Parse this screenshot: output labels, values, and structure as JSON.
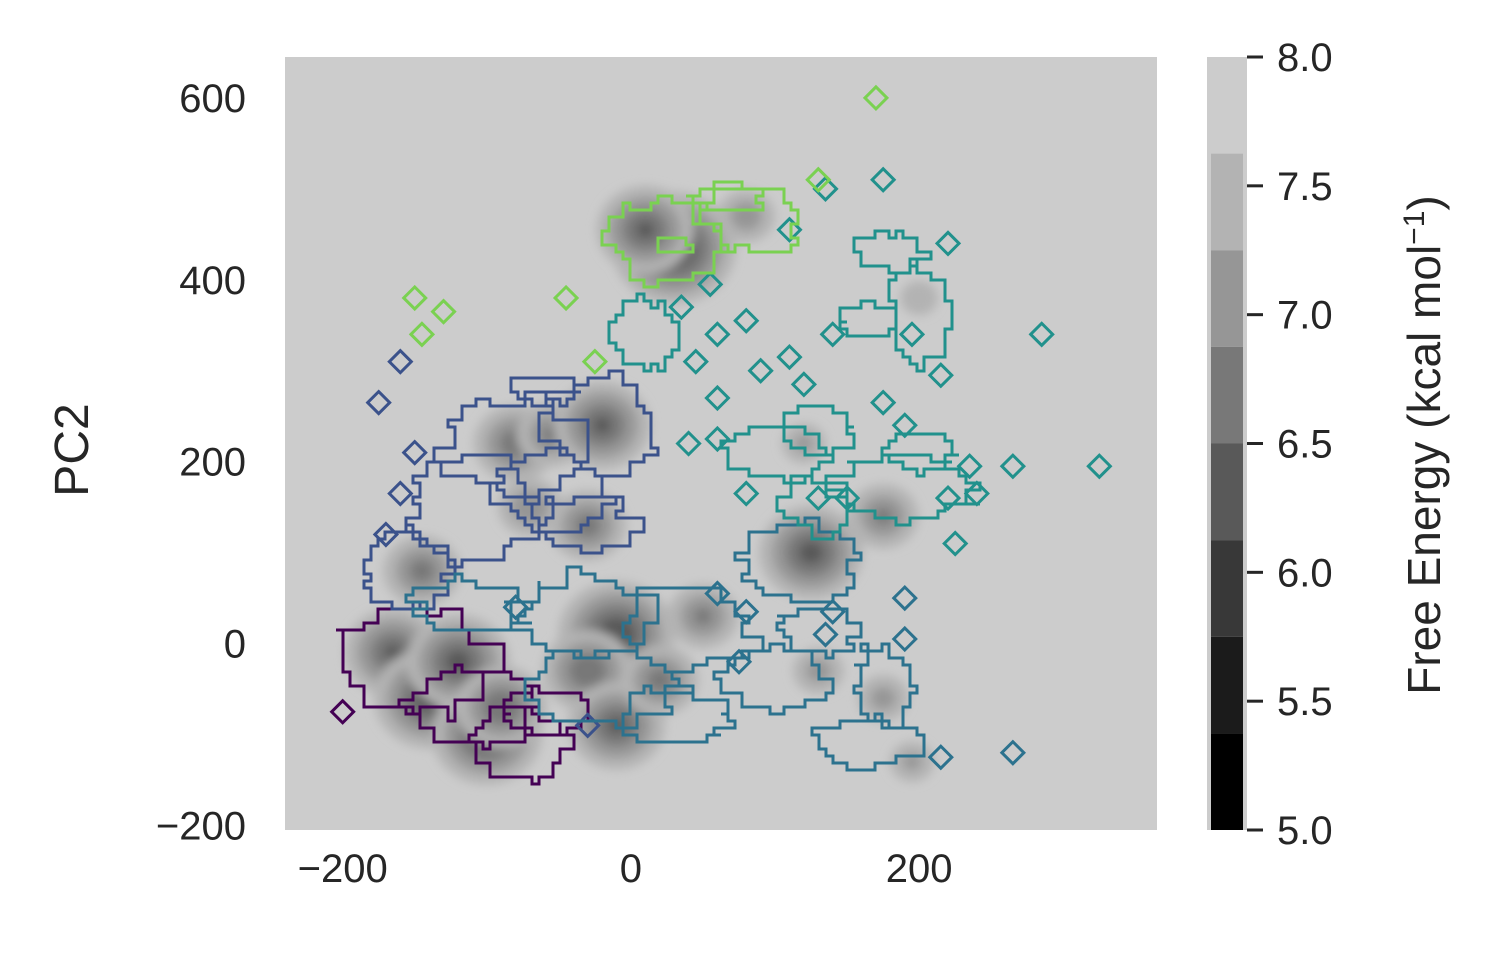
{
  "chart_data": {
    "type": "heatmap",
    "subtype": "free-energy contour map with cluster outlines",
    "title": "",
    "xlabel": "",
    "ylabel": "PC2",
    "xlim": [
      -240,
      365
    ],
    "ylim": [
      -205,
      645
    ],
    "x_ticks": [
      -200,
      0,
      200
    ],
    "x_tick_labels": [
      "−200",
      "0",
      "200"
    ],
    "y_ticks": [
      -200,
      0,
      200,
      400,
      600
    ],
    "y_tick_labels": [
      "−200",
      "0",
      "200",
      "400",
      "600"
    ],
    "grid": false,
    "background_color": "#cccccc",
    "colorbar": {
      "label": "Free Energy (kcal mol⁻¹)",
      "label_main": "Free Energy (kcal mol",
      "label_sup": "−1",
      "label_close": ")",
      "range": [
        5.0,
        8.0
      ],
      "ticks": [
        5.0,
        5.5,
        6.0,
        6.5,
        7.0,
        7.5,
        8.0
      ],
      "tick_labels": [
        "5.0",
        "5.5",
        "6.0",
        "6.5",
        "7.0",
        "7.5",
        "8.0"
      ],
      "levels": [
        5.0,
        5.375,
        5.75,
        6.125,
        6.5,
        6.875,
        7.25,
        7.625,
        8.0
      ],
      "level_colors": [
        "#000000",
        "#1b1b1b",
        "#383838",
        "#595959",
        "#787878",
        "#969696",
        "#b3b3b3",
        "#cccccc"
      ]
    },
    "free_energy_wells": [
      {
        "x": -165,
        "y": -10,
        "depth": 6.2
      },
      {
        "x": -140,
        "y": -60,
        "depth": 6.0
      },
      {
        "x": -120,
        "y": -20,
        "depth": 6.1
      },
      {
        "x": -100,
        "y": -100,
        "depth": 6.0
      },
      {
        "x": -90,
        "y": -70,
        "depth": 6.3
      },
      {
        "x": -145,
        "y": 80,
        "depth": 6.5
      },
      {
        "x": -80,
        "y": 220,
        "depth": 6.4
      },
      {
        "x": -55,
        "y": 230,
        "depth": 6.6
      },
      {
        "x": -20,
        "y": 240,
        "depth": 6.2
      },
      {
        "x": -70,
        "y": 150,
        "depth": 6.7
      },
      {
        "x": -30,
        "y": 130,
        "depth": 6.5
      },
      {
        "x": -10,
        "y": 10,
        "depth": 5.9
      },
      {
        "x": -30,
        "y": -30,
        "depth": 6.3
      },
      {
        "x": -10,
        "y": -90,
        "depth": 6.2
      },
      {
        "x": 20,
        "y": -40,
        "depth": 6.5
      },
      {
        "x": 50,
        "y": 30,
        "depth": 6.6
      },
      {
        "x": 30,
        "y": 435,
        "depth": 5.8
      },
      {
        "x": 10,
        "y": 455,
        "depth": 6.2
      },
      {
        "x": 80,
        "y": 470,
        "depth": 6.8
      },
      {
        "x": 125,
        "y": 100,
        "depth": 6.1
      },
      {
        "x": 175,
        "y": 140,
        "depth": 6.6
      },
      {
        "x": 130,
        "y": -30,
        "depth": 6.9
      },
      {
        "x": 175,
        "y": -60,
        "depth": 6.9
      },
      {
        "x": 195,
        "y": -130,
        "depth": 7.0
      },
      {
        "x": 120,
        "y": 220,
        "depth": 7.0
      },
      {
        "x": 200,
        "y": 380,
        "depth": 7.1
      }
    ],
    "series": [
      {
        "color": "#440154",
        "rings": [
          {
            "cx": -150,
            "cy": -20,
            "rx": 55,
            "ry": 60
          },
          {
            "cx": -110,
            "cy": -70,
            "rx": 45,
            "ry": 45
          },
          {
            "cx": -75,
            "cy": -110,
            "rx": 35,
            "ry": 40
          },
          {
            "cx": -60,
            "cy": -75,
            "rx": 30,
            "ry": 25
          }
        ],
        "diamonds": [
          {
            "x": -200,
            "y": -75
          }
        ]
      },
      {
        "color": "#3b528b",
        "rings": [
          {
            "cx": -155,
            "cy": 80,
            "rx": 30,
            "ry": 45
          },
          {
            "cx": -110,
            "cy": 150,
            "rx": 45,
            "ry": 60
          },
          {
            "cx": -80,
            "cy": 215,
            "rx": 50,
            "ry": 55
          },
          {
            "cx": -55,
            "cy": 165,
            "rx": 40,
            "ry": 45
          },
          {
            "cx": -20,
            "cy": 240,
            "rx": 40,
            "ry": 55
          },
          {
            "cx": -60,
            "cy": 280,
            "rx": 25,
            "ry": 15
          },
          {
            "cx": -30,
            "cy": 130,
            "rx": 35,
            "ry": 30
          }
        ],
        "diamonds": [
          {
            "x": -160,
            "y": 310
          },
          {
            "x": -175,
            "y": 265
          },
          {
            "x": -150,
            "y": 210
          },
          {
            "x": -160,
            "y": 165
          },
          {
            "x": -170,
            "y": 120
          },
          {
            "x": -30,
            "y": -90
          }
        ]
      },
      {
        "color": "#2c728e",
        "rings": [
          {
            "cx": -110,
            "cy": 40,
            "rx": 40,
            "ry": 30
          },
          {
            "cx": -30,
            "cy": 30,
            "rx": 50,
            "ry": 45
          },
          {
            "cx": -20,
            "cy": -50,
            "rx": 55,
            "ry": 40
          },
          {
            "cx": 40,
            "cy": 20,
            "rx": 45,
            "ry": 50
          },
          {
            "cx": 30,
            "cy": -80,
            "rx": 40,
            "ry": 30
          },
          {
            "cx": 100,
            "cy": -40,
            "rx": 40,
            "ry": 35
          },
          {
            "cx": 115,
            "cy": 90,
            "rx": 40,
            "ry": 45
          },
          {
            "cx": 130,
            "cy": 15,
            "rx": 30,
            "ry": 25
          },
          {
            "cx": 165,
            "cy": -110,
            "rx": 40,
            "ry": 25
          },
          {
            "cx": 175,
            "cy": -45,
            "rx": 20,
            "ry": 45
          }
        ],
        "diamonds": [
          {
            "x": -80,
            "y": 40
          },
          {
            "x": 60,
            "y": 55
          },
          {
            "x": 80,
            "y": 35
          },
          {
            "x": 75,
            "y": -20
          },
          {
            "x": 140,
            "y": 35
          },
          {
            "x": 135,
            "y": 10
          },
          {
            "x": 190,
            "y": 50
          },
          {
            "x": 190,
            "y": 5
          },
          {
            "x": 215,
            "y": -125
          },
          {
            "x": 265,
            "y": -120
          }
        ]
      },
      {
        "color": "#21918c",
        "rings": [
          {
            "cx": 10,
            "cy": 340,
            "rx": 25,
            "ry": 40
          },
          {
            "cx": 100,
            "cy": 210,
            "rx": 35,
            "ry": 30
          },
          {
            "cx": 130,
            "cy": 235,
            "rx": 25,
            "ry": 25
          },
          {
            "cx": 165,
            "cy": 355,
            "rx": 20,
            "ry": 20
          },
          {
            "cx": 180,
            "cy": 430,
            "rx": 25,
            "ry": 20
          },
          {
            "cx": 200,
            "cy": 360,
            "rx": 20,
            "ry": 55
          },
          {
            "cx": 190,
            "cy": 170,
            "rx": 50,
            "ry": 35
          },
          {
            "cx": 130,
            "cy": 150,
            "rx": 25,
            "ry": 30
          },
          {
            "cx": 200,
            "cy": 210,
            "rx": 25,
            "ry": 20
          }
        ],
        "diamonds": [
          {
            "x": 60,
            "y": 340
          },
          {
            "x": 35,
            "y": 370
          },
          {
            "x": 80,
            "y": 355
          },
          {
            "x": 45,
            "y": 310
          },
          {
            "x": 55,
            "y": 395
          },
          {
            "x": 60,
            "y": 270
          },
          {
            "x": 40,
            "y": 220
          },
          {
            "x": 60,
            "y": 225
          },
          {
            "x": 110,
            "y": 315
          },
          {
            "x": 90,
            "y": 300
          },
          {
            "x": 120,
            "y": 285
          },
          {
            "x": 140,
            "y": 340
          },
          {
            "x": 195,
            "y": 340
          },
          {
            "x": 175,
            "y": 265
          },
          {
            "x": 190,
            "y": 240
          },
          {
            "x": 80,
            "y": 165
          },
          {
            "x": 130,
            "y": 160
          },
          {
            "x": 220,
            "y": 160
          },
          {
            "x": 235,
            "y": 195
          },
          {
            "x": 265,
            "y": 195
          },
          {
            "x": 240,
            "y": 165
          },
          {
            "x": 225,
            "y": 110
          },
          {
            "x": 285,
            "y": 340
          },
          {
            "x": 325,
            "y": 195
          },
          {
            "x": 215,
            "y": 295
          },
          {
            "x": 220,
            "y": 440
          },
          {
            "x": 135,
            "y": 500
          },
          {
            "x": 175,
            "y": 510
          },
          {
            "x": 110,
            "y": 455
          },
          {
            "x": 150,
            "y": 160
          }
        ]
      },
      {
        "color": "#7ad151",
        "rings": [
          {
            "cx": 25,
            "cy": 440,
            "rx": 40,
            "ry": 45
          },
          {
            "cx": 85,
            "cy": 465,
            "rx": 35,
            "ry": 35
          },
          {
            "cx": 65,
            "cy": 490,
            "rx": 25,
            "ry": 15
          },
          {
            "cx": 30,
            "cy": 437,
            "rx": 12,
            "ry": 10
          }
        ],
        "diamonds": [
          {
            "x": -150,
            "y": 380
          },
          {
            "x": -130,
            "y": 365
          },
          {
            "x": -145,
            "y": 340
          },
          {
            "x": -45,
            "y": 380
          },
          {
            "x": -25,
            "y": 310
          },
          {
            "x": 130,
            "y": 510
          },
          {
            "x": 170,
            "y": 600
          }
        ]
      }
    ]
  }
}
